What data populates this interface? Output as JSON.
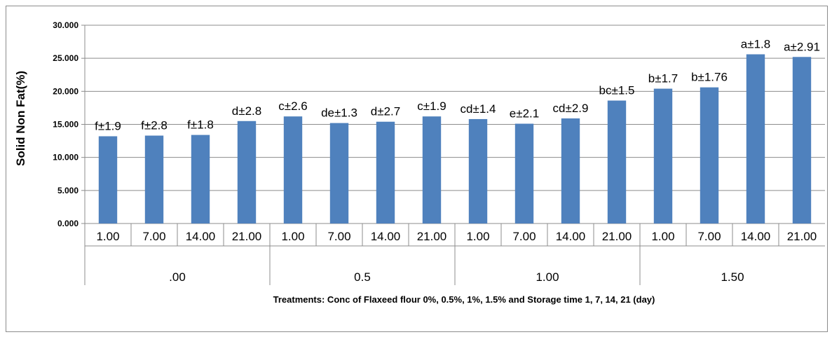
{
  "chart_data": {
    "type": "bar",
    "ylabel": "Solid Non Fat(%)",
    "xlabel": "Treatments:  Conc of Flaxeed flour 0%, 0.5%, 1%, 1.5%  and Storage time 1, 7, 14, 21 (day)",
    "ylim": [
      0,
      30
    ],
    "yticks": [
      "0.000",
      "5.000",
      "10.000",
      "15.000",
      "20.000",
      "25.000",
      "30.000"
    ],
    "grid": true,
    "legend": "none",
    "colors": {
      "bar": "#4f81bd",
      "grid": "#8c8c8c",
      "axis": "#8c8c8c"
    },
    "groups": [
      {
        "label": ".00",
        "categories": [
          "1.00",
          "7.00",
          "14.00",
          "21.00"
        ],
        "values": [
          13.2,
          13.3,
          13.4,
          15.5
        ],
        "data_labels": [
          "f±1.9",
          "f±2.8",
          "f±1.8",
          "d±2.8"
        ]
      },
      {
        "label": "0.5",
        "categories": [
          "1.00",
          "7.00",
          "14.00",
          "21.00"
        ],
        "values": [
          16.2,
          15.2,
          15.4,
          16.2
        ],
        "data_labels": [
          "c±2.6",
          "de±1.3",
          "d±2.7",
          "c±1.9"
        ]
      },
      {
        "label": "1.00",
        "categories": [
          "1.00",
          "7.00",
          "14.00",
          "21.00"
        ],
        "values": [
          15.8,
          15.1,
          15.9,
          18.6
        ],
        "data_labels": [
          "cd±1.4",
          "e±2.1",
          "cd±2.9",
          "bc±1.5"
        ]
      },
      {
        "label": "1.50",
        "categories": [
          "1.00",
          "7.00",
          "14.00",
          "21.00"
        ],
        "values": [
          20.4,
          20.6,
          25.6,
          25.2
        ],
        "data_labels": [
          "b±1.7",
          "b±1.76",
          "a±1.8",
          "a±2.91"
        ]
      }
    ]
  }
}
